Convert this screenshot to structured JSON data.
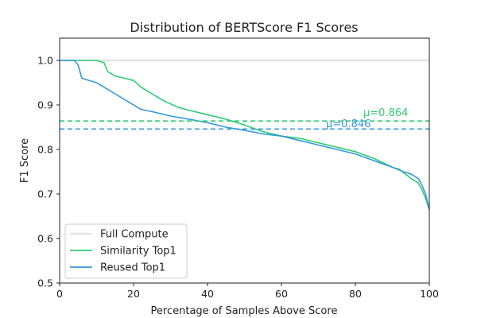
{
  "chart_data": {
    "type": "line",
    "title": "Distribution of BERTScore F1 Scores",
    "xlabel": "Percentage of Samples Above Score",
    "ylabel": "F1 Score",
    "xlim": [
      0,
      100
    ],
    "ylim": [
      0.5,
      1.05
    ],
    "xticks": [
      "0",
      "20",
      "40",
      "60",
      "80",
      "100"
    ],
    "yticks": [
      "0.5",
      "0.6",
      "0.7",
      "0.8",
      "0.9",
      "1.0"
    ],
    "legend_position": "lower-left",
    "series": [
      {
        "name": "Full Compute",
        "color": "#e3e3e3",
        "dash": "solid",
        "x": [
          0,
          100
        ],
        "y": [
          1.0,
          1.0
        ]
      },
      {
        "name": "Similarity Top1",
        "color": "#2ecc71",
        "dash": "solid",
        "x": [
          0,
          10,
          12,
          13,
          15,
          20,
          22,
          25,
          28,
          32,
          35,
          40,
          45,
          50,
          55,
          60,
          65,
          70,
          75,
          80,
          85,
          90,
          92,
          95,
          97,
          98,
          99,
          100
        ],
        "y": [
          1.0,
          1.0,
          0.995,
          0.975,
          0.965,
          0.955,
          0.94,
          0.925,
          0.91,
          0.895,
          0.888,
          0.878,
          0.868,
          0.855,
          0.84,
          0.83,
          0.825,
          0.815,
          0.805,
          0.795,
          0.78,
          0.76,
          0.755,
          0.735,
          0.725,
          0.71,
          0.69,
          0.665
        ]
      },
      {
        "name": "Reused Top1",
        "color": "#3498db",
        "dash": "solid",
        "x": [
          0,
          4,
          5,
          6,
          10,
          12,
          15,
          18,
          20,
          22,
          25,
          30,
          35,
          40,
          45,
          50,
          55,
          60,
          65,
          70,
          75,
          80,
          85,
          90,
          93,
          95,
          97,
          98,
          99,
          100
        ],
        "y": [
          1.0,
          1.0,
          0.99,
          0.96,
          0.95,
          0.94,
          0.925,
          0.91,
          0.9,
          0.89,
          0.885,
          0.875,
          0.868,
          0.86,
          0.85,
          0.843,
          0.835,
          0.83,
          0.82,
          0.81,
          0.8,
          0.79,
          0.775,
          0.76,
          0.75,
          0.745,
          0.735,
          0.72,
          0.7,
          0.665
        ]
      }
    ],
    "reference_lines": [
      {
        "label": "μ=0.864",
        "y": 0.864,
        "color": "#2ecc71",
        "dash": "dashed"
      },
      {
        "label": "μ=0.846",
        "y": 0.846,
        "color": "#3498db",
        "dash": "dashed"
      }
    ]
  }
}
